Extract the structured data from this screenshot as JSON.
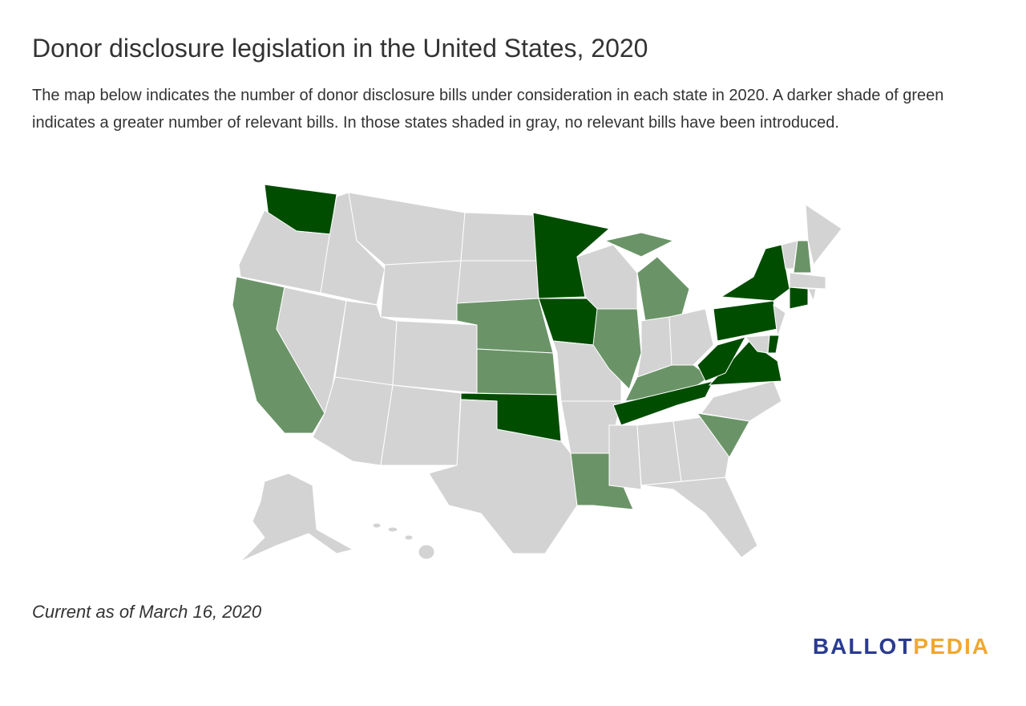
{
  "header": {
    "title": "Donor disclosure legislation in the United States, 2020",
    "description": "The map below indicates the number of donor disclosure bills under consideration in each state in 2020. A darker shade of green indicates a greater number of relevant bills. In those states shaded in gray, no relevant bills have been introduced."
  },
  "footer": {
    "note": "Current as of March 16, 2020",
    "logo": {
      "part1": "BALLOT",
      "part2": "PEDIA"
    }
  }
}
